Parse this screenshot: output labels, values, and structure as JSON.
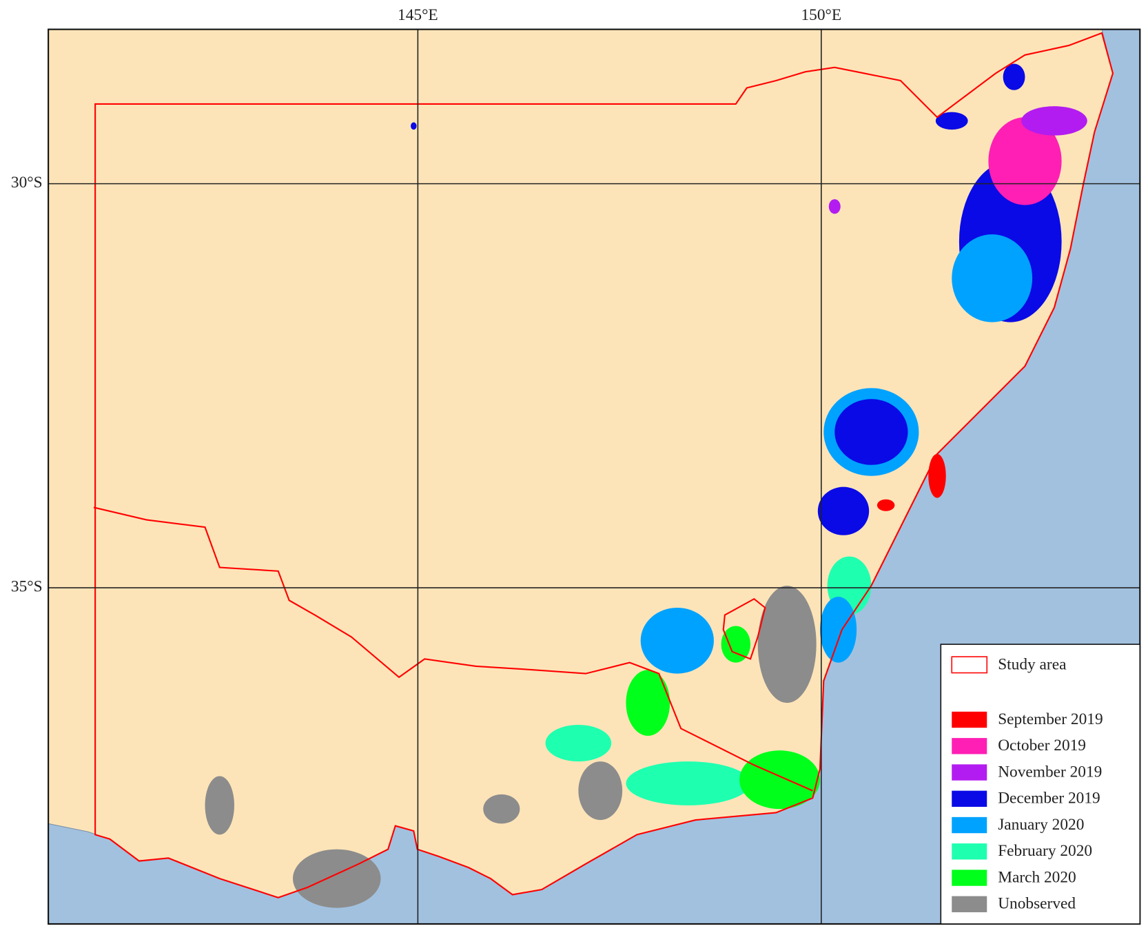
{
  "map": {
    "xlim": [
      140.42,
      153.95
    ],
    "ylim": [
      -28.09,
      -39.16
    ],
    "longitudes": [
      {
        "value": 145,
        "label": "145°E"
      },
      {
        "value": 150,
        "label": "150°E"
      }
    ],
    "latitudes": [
      {
        "value": -30,
        "label": "30°S"
      },
      {
        "value": -35,
        "label": "35°S"
      }
    ],
    "legend": [
      {
        "label": "Study area",
        "color": "#ff0000",
        "style": "outline"
      },
      {
        "label": "September 2019",
        "color": "#ff0000"
      },
      {
        "label": "October 2019",
        "color": "#ff1fb4"
      },
      {
        "label": "November 2019",
        "color": "#b31cf0"
      },
      {
        "label": "December 2019",
        "color": "#0a0ae6"
      },
      {
        "label": "January 2020",
        "color": "#00a2ff"
      },
      {
        "label": "February 2020",
        "color": "#1fffb0"
      },
      {
        "label": "March 2020",
        "color": "#00ff1a"
      },
      {
        "label": "Unobserved",
        "color": "#8c8c8c"
      }
    ]
  }
}
